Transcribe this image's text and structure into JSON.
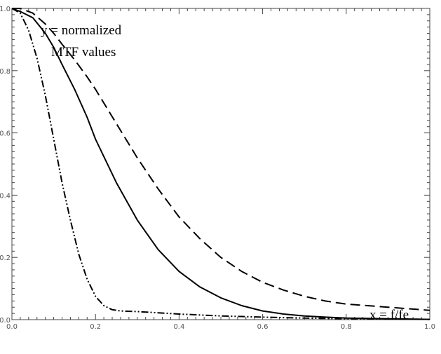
{
  "chart_data": {
    "type": "line",
    "title": "",
    "xlabel": "",
    "ylabel": "",
    "xlim": [
      0.0,
      1.0
    ],
    "ylim": [
      0.0,
      1.0
    ],
    "x_ticks": [
      "0.0",
      "0.2",
      "0.4",
      "0.6",
      "0.8",
      "1.0"
    ],
    "y_ticks": [
      "0.0",
      "0.2",
      "0.4",
      "0.6",
      "0.8",
      "1.0"
    ],
    "grid": false,
    "legend": "none",
    "annotations": [
      {
        "id": "y_label_line1",
        "text": "y = normalized"
      },
      {
        "id": "y_label_line2",
        "text": "MTF values"
      },
      {
        "id": "x_label",
        "text": "x = f/fe"
      }
    ],
    "series": [
      {
        "style": "dashed",
        "color": "#000000",
        "x": [
          0.0,
          0.02,
          0.05,
          0.08,
          0.1,
          0.12,
          0.15,
          0.18,
          0.2,
          0.25,
          0.3,
          0.35,
          0.4,
          0.45,
          0.5,
          0.55,
          0.6,
          0.65,
          0.7,
          0.75,
          0.8,
          0.85,
          0.9,
          0.95,
          1.0
        ],
        "y": [
          1.0,
          1.0,
          0.985,
          0.95,
          0.92,
          0.885,
          0.835,
          0.78,
          0.74,
          0.63,
          0.52,
          0.42,
          0.33,
          0.26,
          0.2,
          0.155,
          0.12,
          0.095,
          0.075,
          0.06,
          0.05,
          0.045,
          0.04,
          0.035,
          0.03
        ]
      },
      {
        "style": "solid",
        "color": "#000000",
        "x": [
          0.0,
          0.02,
          0.05,
          0.08,
          0.1,
          0.12,
          0.15,
          0.18,
          0.2,
          0.25,
          0.3,
          0.35,
          0.4,
          0.45,
          0.5,
          0.55,
          0.6,
          0.65,
          0.7,
          0.75,
          0.8,
          0.85,
          0.9,
          0.95,
          1.0
        ],
        "y": [
          1.0,
          0.99,
          0.97,
          0.92,
          0.875,
          0.82,
          0.74,
          0.65,
          0.58,
          0.44,
          0.32,
          0.225,
          0.155,
          0.105,
          0.07,
          0.045,
          0.028,
          0.018,
          0.012,
          0.008,
          0.005,
          0.004,
          0.003,
          0.002,
          0.001
        ]
      },
      {
        "style": "dash-dot-dot",
        "color": "#000000",
        "x": [
          0.0,
          0.02,
          0.04,
          0.06,
          0.08,
          0.1,
          0.12,
          0.14,
          0.16,
          0.18,
          0.2,
          0.22,
          0.24,
          0.26,
          0.3,
          0.35,
          0.4,
          0.5,
          0.6,
          0.7,
          0.8,
          0.9,
          1.0
        ],
        "y": [
          1.0,
          0.985,
          0.93,
          0.84,
          0.72,
          0.58,
          0.44,
          0.32,
          0.21,
          0.13,
          0.075,
          0.045,
          0.032,
          0.028,
          0.026,
          0.022,
          0.018,
          0.012,
          0.008,
          0.005,
          0.003,
          0.002,
          0.001
        ]
      }
    ]
  }
}
